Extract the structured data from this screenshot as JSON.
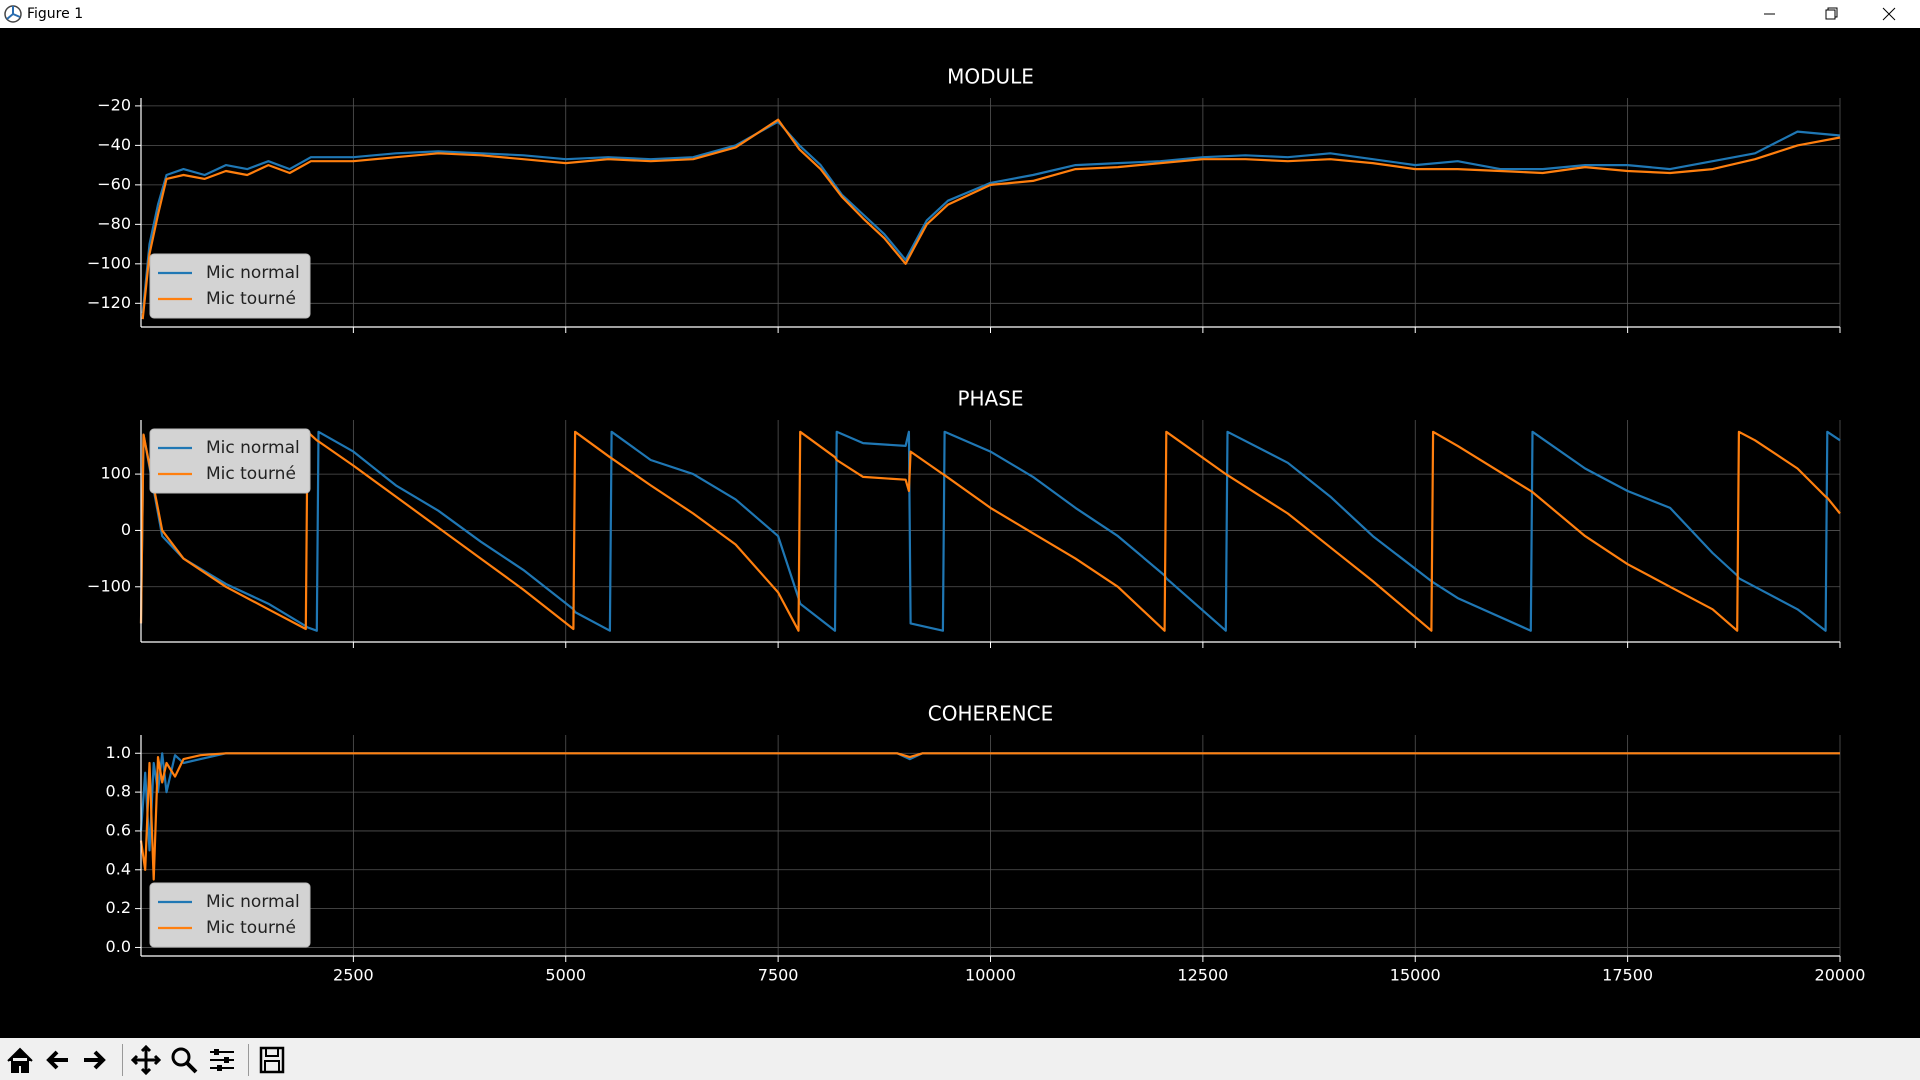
{
  "window": {
    "title": "Figure 1"
  },
  "chart_data": [
    {
      "type": "line",
      "title": "MODULE",
      "x": [
        20,
        100,
        200,
        300,
        500,
        750,
        1000,
        1250,
        1500,
        1750,
        2000,
        2500,
        3000,
        3500,
        4000,
        4500,
        5000,
        5500,
        6000,
        6500,
        7000,
        7500,
        7750,
        8000,
        8250,
        8500,
        8750,
        9000,
        9100,
        9250,
        9500,
        10000,
        10500,
        11000,
        11500,
        12000,
        12500,
        13000,
        13500,
        14000,
        14500,
        15000,
        15500,
        16000,
        16500,
        17000,
        17500,
        18000,
        18500,
        19000,
        19500,
        20000
      ],
      "series": [
        {
          "name": "Mic normal",
          "color": "#1f77b4",
          "values": [
            -125,
            -90,
            -70,
            -55,
            -52,
            -55,
            -50,
            -52,
            -48,
            -52,
            -46,
            -46,
            -44,
            -43,
            -44,
            -45,
            -47,
            -46,
            -47,
            -46,
            -40,
            -28,
            -40,
            -50,
            -65,
            -75,
            -85,
            -98,
            -90,
            -78,
            -68,
            -59,
            -55,
            -50,
            -49,
            -48,
            -46,
            -45,
            -46,
            -44,
            -47,
            -50,
            -48,
            -52,
            -52,
            -50,
            -50,
            -52,
            -48,
            -44,
            -33,
            -35
          ]
        },
        {
          "name": "Mic tourné",
          "color": "#ff7f0e",
          "values": [
            -128,
            -95,
            -75,
            -57,
            -55,
            -57,
            -53,
            -55,
            -50,
            -54,
            -48,
            -48,
            -46,
            -44,
            -45,
            -47,
            -49,
            -47,
            -48,
            -47,
            -41,
            -27,
            -42,
            -52,
            -66,
            -77,
            -87,
            -100,
            -92,
            -80,
            -70,
            -60,
            -58,
            -52,
            -51,
            -49,
            -47,
            -47,
            -48,
            -47,
            -49,
            -52,
            -52,
            -53,
            -54,
            -51,
            -53,
            -54,
            -52,
            -47,
            -40,
            -36
          ]
        }
      ],
      "xlim": [
        0,
        20000
      ],
      "xticks": [
        2500,
        5000,
        7500,
        10000,
        12500,
        15000,
        17500,
        20000
      ],
      "show_xtick_labels": false,
      "ylim": [
        -132,
        -16
      ],
      "yticks": [
        {
          "value": -120,
          "label": "−120"
        },
        {
          "value": -100,
          "label": "−100"
        },
        {
          "value": -80,
          "label": "−80"
        },
        {
          "value": -60,
          "label": "−60"
        },
        {
          "value": -40,
          "label": "−40"
        },
        {
          "value": -20,
          "label": "−20"
        }
      ],
      "grid": true,
      "legend": "lower left"
    },
    {
      "type": "line",
      "title": "PHASE",
      "x": [
        0,
        30,
        250,
        500,
        1000,
        1500,
        1940,
        1960,
        2070,
        2090,
        2500,
        3000,
        3500,
        4000,
        4500,
        5090,
        5110,
        5520,
        5540,
        6000,
        6500,
        7000,
        7500,
        7740,
        7760,
        8170,
        8190,
        8500,
        9000,
        9040,
        9060,
        9440,
        9460,
        10000,
        10500,
        11000,
        11500,
        12050,
        12070,
        12770,
        12790,
        13500,
        14000,
        14500,
        15190,
        15210,
        15500,
        16360,
        16380,
        17000,
        17500,
        18000,
        18500,
        18790,
        18810,
        19000,
        19500,
        19830,
        19850,
        20000
      ],
      "series": [
        {
          "name": "Mic normal",
          "color": "#1f77b4",
          "values": [
            -165,
            170,
            -10,
            -50,
            -95,
            -130,
            -170,
            -172,
            -178,
            175,
            140,
            80,
            35,
            -20,
            -70,
            -140,
            -145,
            -178,
            175,
            125,
            100,
            55,
            -10,
            -120,
            -130,
            -178,
            175,
            155,
            150,
            175,
            -165,
            -178,
            175,
            140,
            95,
            40,
            -10,
            -80,
            -85,
            -178,
            175,
            120,
            60,
            -10,
            -90,
            -92,
            -120,
            -178,
            175,
            110,
            70,
            40,
            -40,
            -80,
            -85,
            -100,
            -140,
            -178,
            175,
            160
          ]
        },
        {
          "name": "Mic tourné",
          "color": "#ff7f0e",
          "values": [
            -165,
            170,
            0,
            -50,
            -100,
            -140,
            -175,
            175,
            160,
            158,
            115,
            60,
            5,
            -50,
            -105,
            -175,
            175,
            130,
            128,
            80,
            30,
            -25,
            -110,
            -178,
            175,
            130,
            125,
            95,
            90,
            70,
            140,
            100,
            98,
            40,
            -5,
            -50,
            -100,
            -178,
            175,
            100,
            98,
            30,
            -30,
            -90,
            -178,
            175,
            150,
            70,
            68,
            -10,
            -60,
            -100,
            -140,
            -178,
            175,
            160,
            110,
            60,
            58,
            30
          ]
        }
      ],
      "xlim": [
        0,
        20000
      ],
      "xticks": [
        2500,
        5000,
        7500,
        10000,
        12500,
        15000,
        17500,
        20000
      ],
      "show_xtick_labels": false,
      "ylim": [
        -198,
        196
      ],
      "yticks": [
        {
          "value": -100,
          "label": "−100"
        },
        0,
        100
      ],
      "grid": true,
      "legend": "upper left"
    },
    {
      "type": "line",
      "title": "COHERENCE",
      "x": [
        0,
        50,
        100,
        150,
        200,
        250,
        300,
        400,
        500,
        700,
        1000,
        1500,
        2000,
        5000,
        8900,
        9050,
        9200,
        12000,
        20000
      ],
      "series": [
        {
          "name": "Mic normal",
          "color": "#1f77b4",
          "values": [
            0.6,
            0.9,
            0.5,
            0.95,
            0.8,
            1.0,
            0.8,
            0.99,
            0.95,
            0.97,
            1.0,
            1.0,
            1.0,
            1.0,
            1.0,
            0.97,
            1.0,
            1.0,
            1.0
          ]
        },
        {
          "name": "Mic tourné",
          "color": "#ff7f0e",
          "values": [
            0.55,
            0.4,
            0.95,
            0.35,
            0.98,
            0.85,
            0.95,
            0.88,
            0.97,
            0.99,
            1.0,
            1.0,
            1.0,
            1.0,
            1.0,
            0.98,
            1.0,
            1.0,
            1.0
          ]
        }
      ],
      "xlim": [
        0,
        20000
      ],
      "xticks": [
        2500,
        5000,
        7500,
        10000,
        12500,
        15000,
        17500,
        20000
      ],
      "show_xtick_labels": true,
      "ylim": [
        -0.044,
        1.094
      ],
      "yticks": [
        {
          "value": 0,
          "label": "0.0"
        },
        0.2,
        0.4,
        0.6,
        0.8,
        {
          "value": 1,
          "label": "1.0"
        }
      ],
      "grid": true,
      "legend": "lower left"
    }
  ]
}
